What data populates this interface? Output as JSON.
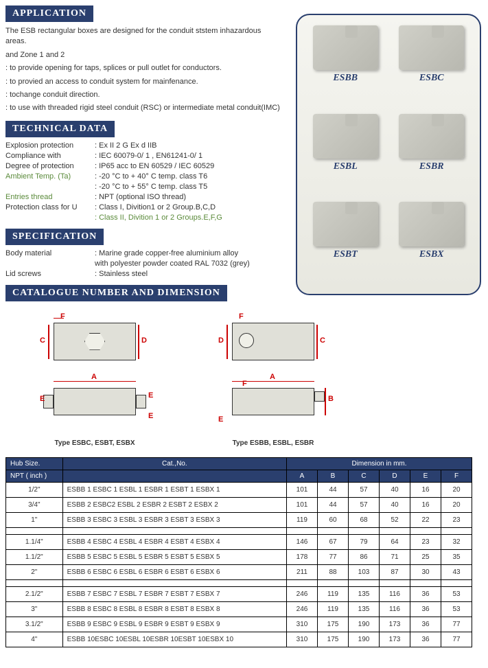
{
  "headers": {
    "application": "APPLICATION",
    "technical": "TECHNICAL DATA",
    "specification": "SPECIFICATION",
    "catalogue": "CATALOGUE NUMBER AND DIMENSION"
  },
  "application": {
    "intro": "The ESB rectangular boxes are designed for the conduit ststem inhazardous areas.",
    "line2": "and Zone 1 and 2",
    "b1": ": to provide opening for taps, splices or pull outlet for conductors.",
    "b2": ": to provied an access to conduit system for mainfenance.",
    "b3": ": tochange conduit direction.",
    "b4": ": to use with threaded rigid steel conduit (RSC) or intermediate metal conduit(IMC)"
  },
  "technical": {
    "rows": [
      {
        "label": "Explosion protection",
        "value": ": Ex II 2 G   Ex d IIB",
        "green": false
      },
      {
        "label": "Compliance with",
        "value": ": IEC 60079-0/ 1 , EN61241-0/ 1",
        "green": false
      },
      {
        "label": "Degree of protection",
        "value": ": IP65 acc to EN 60529 / IEC 60529",
        "green": false
      },
      {
        "label": "Ambient Temp. (Ta)",
        "value": ": -20 °C to + 40° C      temp. class T6",
        "green": true
      },
      {
        "label": "",
        "value": ": -20 °C to + 55° C      temp. class T5",
        "green": false
      },
      {
        "label": "Entries thread",
        "value": ": NPT (optional ISO thread)",
        "green": true
      },
      {
        "label": "Protection class for U",
        "value": ": Class I, Divition1 or 2 Group.B,C,D",
        "green": false
      },
      {
        "label": "",
        "value": ": Class II, Divition 1 or 2 Groups.E,F,G",
        "green": true,
        "valueGreen": true
      }
    ]
  },
  "specification": {
    "rows": [
      {
        "label": "Body material",
        "value": ": Marine grade copper-free aluminium alloy"
      },
      {
        "label": "",
        "value": "  with polyester powder coated RAL 7032 (grey)"
      },
      {
        "label": "Lid screws",
        "value": ": Stainless steel"
      }
    ]
  },
  "products": [
    "ESBB",
    "ESBC",
    "ESBL",
    "ESBR",
    "ESBT",
    "ESBX"
  ],
  "dimCaptions": {
    "left": "Type ESBC, ESBT, ESBX",
    "right": "Type ESBB, ESBL, ESBR"
  },
  "table": {
    "header1": {
      "hub": "Hub Size.",
      "cat": "Cat.,No.",
      "dim": "Dimension in mm."
    },
    "header2": {
      "npt": "NPT ( inch )",
      "cols": [
        "A",
        "B",
        "C",
        "D",
        "E",
        "F"
      ]
    },
    "rows": [
      {
        "size": "1/2\"",
        "cat": "ESBB 1 ESBC 1 ESBL 1 ESBR 1 ESBT 1 ESBX 1",
        "d": [
          "101",
          "44",
          "57",
          "40",
          "16",
          "20"
        ]
      },
      {
        "size": "3/4\"",
        "cat": "ESBB 2  ESBC2  ESBL 2  ESBR 2  ESBT 2  ESBX 2",
        "d": [
          "101",
          "44",
          "57",
          "40",
          "16",
          "20"
        ]
      },
      {
        "size": "1\"",
        "cat": "ESBB 3  ESBC 3  ESBL 3  ESBR 3  ESBT 3  ESBX 3",
        "d": [
          "119",
          "60",
          "68",
          "52",
          "22",
          "23"
        ]
      },
      {
        "size": "1.1/4\"",
        "cat": "ESBB 4  ESBC 4  ESBL 4  ESBR 4  ESBT 4  ESBX 4",
        "d": [
          "146",
          "67",
          "79",
          "64",
          "23",
          "32"
        ]
      },
      {
        "size": "1.1/2\"",
        "cat": "ESBB 5  ESBC 5  ESBL 5  ESBR 5  ESBT 5  ESBX 5",
        "d": [
          "178",
          "77",
          "86",
          "71",
          "25",
          "35"
        ]
      },
      {
        "size": "2\"",
        "cat": "ESBB 6  ESBC 6  ESBL 6  ESBR 6  ESBT 6  ESBX 6",
        "d": [
          "211",
          "88",
          "103",
          "87",
          "30",
          "43"
        ]
      },
      {
        "size": "2.1/2\"",
        "cat": "ESBB 7  ESBC 7  ESBL 7  ESBR 7  ESBT 7  ESBX 7",
        "d": [
          "246",
          "119",
          "135",
          "116",
          "36",
          "53"
        ]
      },
      {
        "size": "3\"",
        "cat": "ESBB 8  ESBC 8  ESBL 8  ESBR 8  ESBT 8  ESBX 8",
        "d": [
          "246",
          "119",
          "135",
          "116",
          "36",
          "53"
        ]
      },
      {
        "size": "3.1/2\"",
        "cat": "ESBB 9  ESBC 9  ESBL 9  ESBR 9  ESBT 9  ESBX 9",
        "d": [
          "310",
          "175",
          "190",
          "173",
          "36",
          "77"
        ]
      },
      {
        "size": "4\"",
        "cat": "ESBB 10ESBC 10ESBL 10ESBR 10ESBT 10ESBX 10",
        "d": [
          "310",
          "175",
          "190",
          "173",
          "36",
          "77"
        ]
      }
    ]
  },
  "colors": {
    "headerBg": "#2a3f6e",
    "green": "#5a8a3a",
    "red": "#cc0000"
  }
}
